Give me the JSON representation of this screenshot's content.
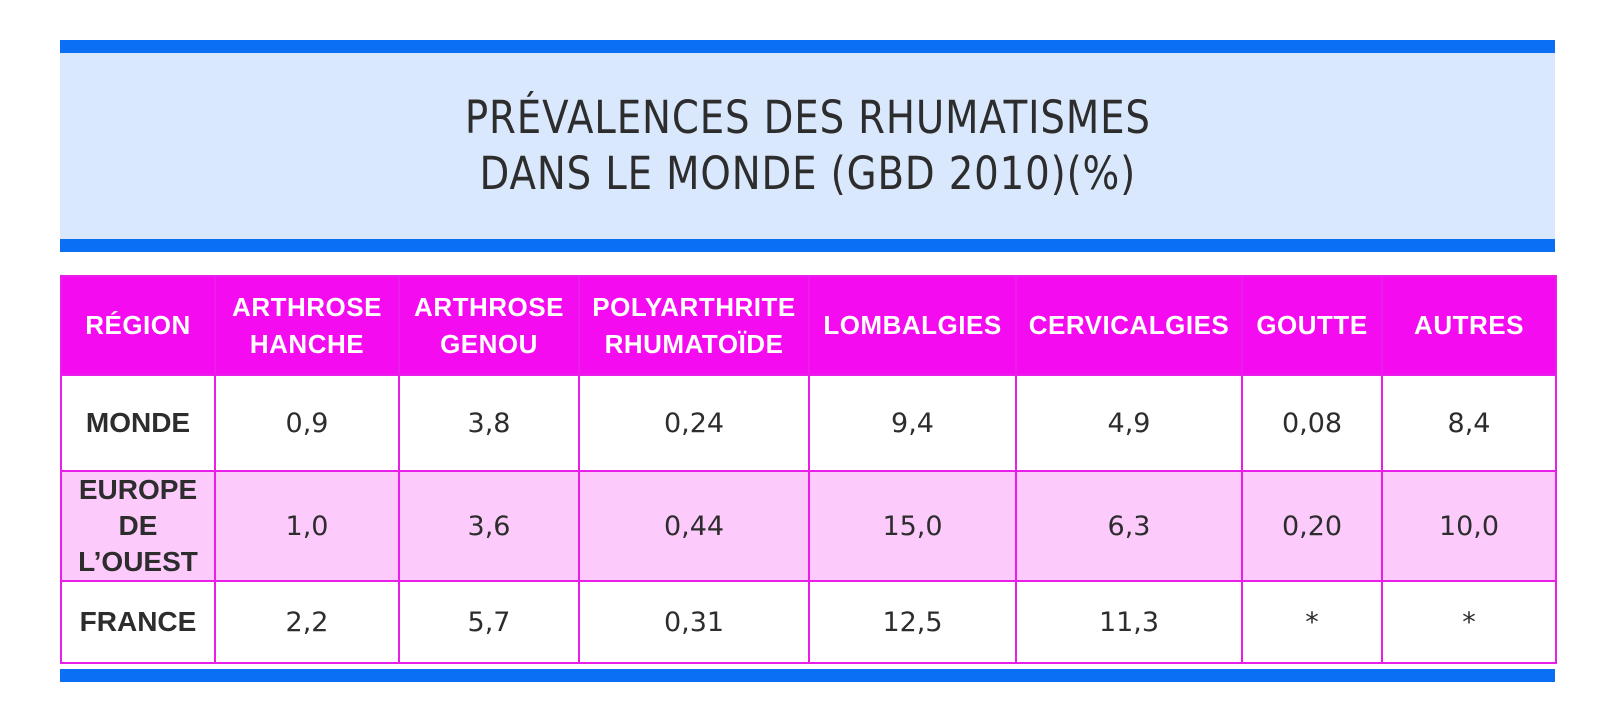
{
  "title": {
    "line1": "PRÉVALENCES DES RHUMATISMES",
    "line2": "DANS LE MONDE (GBD 2010)(%)"
  },
  "colors": {
    "accent_blue": "#0a6ff5",
    "title_background": "#d9e8fd",
    "header_magenta": "#f40bf0",
    "row_highlight": "#fccbfc",
    "grid_line": "#e91ee8"
  },
  "table": {
    "columns": [
      {
        "line1": "RÉGION",
        "line2": ""
      },
      {
        "line1": "ARTHROSE",
        "line2": "HANCHE"
      },
      {
        "line1": "ARTHROSE",
        "line2": "GENOU"
      },
      {
        "line1": "POLYARTHRITE",
        "line2": "RHUMATOÏDE"
      },
      {
        "line1": "LOMBALGIES",
        "line2": ""
      },
      {
        "line1": "CERVICALGIES",
        "line2": ""
      },
      {
        "line1": "GOUTTE",
        "line2": ""
      },
      {
        "line1": "AUTRES",
        "line2": ""
      }
    ],
    "rows": [
      {
        "region": {
          "line1": "MONDE",
          "line2": ""
        },
        "values": [
          "0,9",
          "3,8",
          "0,24",
          "9,4",
          "4,9",
          "0,08",
          "8,4"
        ]
      },
      {
        "region": {
          "line1": "EUROPE",
          "line2": "DE L’OUEST"
        },
        "values": [
          "1,0",
          "3,6",
          "0,44",
          "15,0",
          "6,3",
          "0,20",
          "10,0"
        ]
      },
      {
        "region": {
          "line1": "FRANCE",
          "line2": ""
        },
        "values": [
          "2,2",
          "5,7",
          "0,31",
          "12,5",
          "11,3",
          "*",
          "*"
        ]
      }
    ]
  }
}
